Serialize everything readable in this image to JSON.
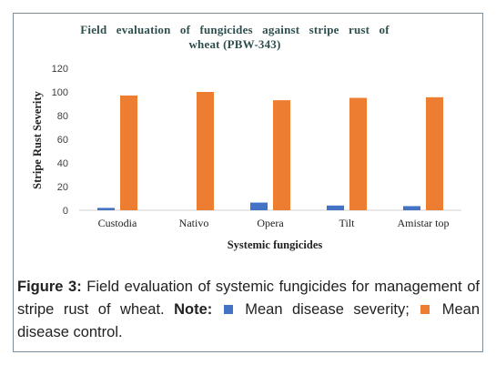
{
  "chart_data": {
    "type": "bar",
    "title_lines": [
      "Field   evaluation   of   fungicides   against   stripe   rust   of",
      "wheat (PBW-343)"
    ],
    "xlabel": "Systemic fungicides",
    "ylabel": "Stripe Rust Severity",
    "categories": [
      "Custodia",
      "Nativo",
      "Opera",
      "Tilt",
      "Amistar top"
    ],
    "yticks": [
      "0",
      "20",
      "40",
      "60",
      "80",
      "100",
      "120"
    ],
    "ylim": [
      0,
      120
    ],
    "grid": false,
    "series": [
      {
        "name": "Mean disease severity",
        "color": "#4472c4",
        "values": [
          2,
          0,
          6.5,
          4,
          3.5
        ]
      },
      {
        "name": "Mean disease control",
        "color": "#ed7d31",
        "values": [
          97,
          100,
          93,
          95,
          95.5
        ]
      }
    ]
  },
  "caption": {
    "figure_label": "Figure 3:",
    "text": " Field evaluation of systemic fungicides for management of stripe rust of wheat. ",
    "note_label": "Note:",
    "legend_1": " Mean disease severity; ",
    "legend_2": " Mean disease control."
  }
}
